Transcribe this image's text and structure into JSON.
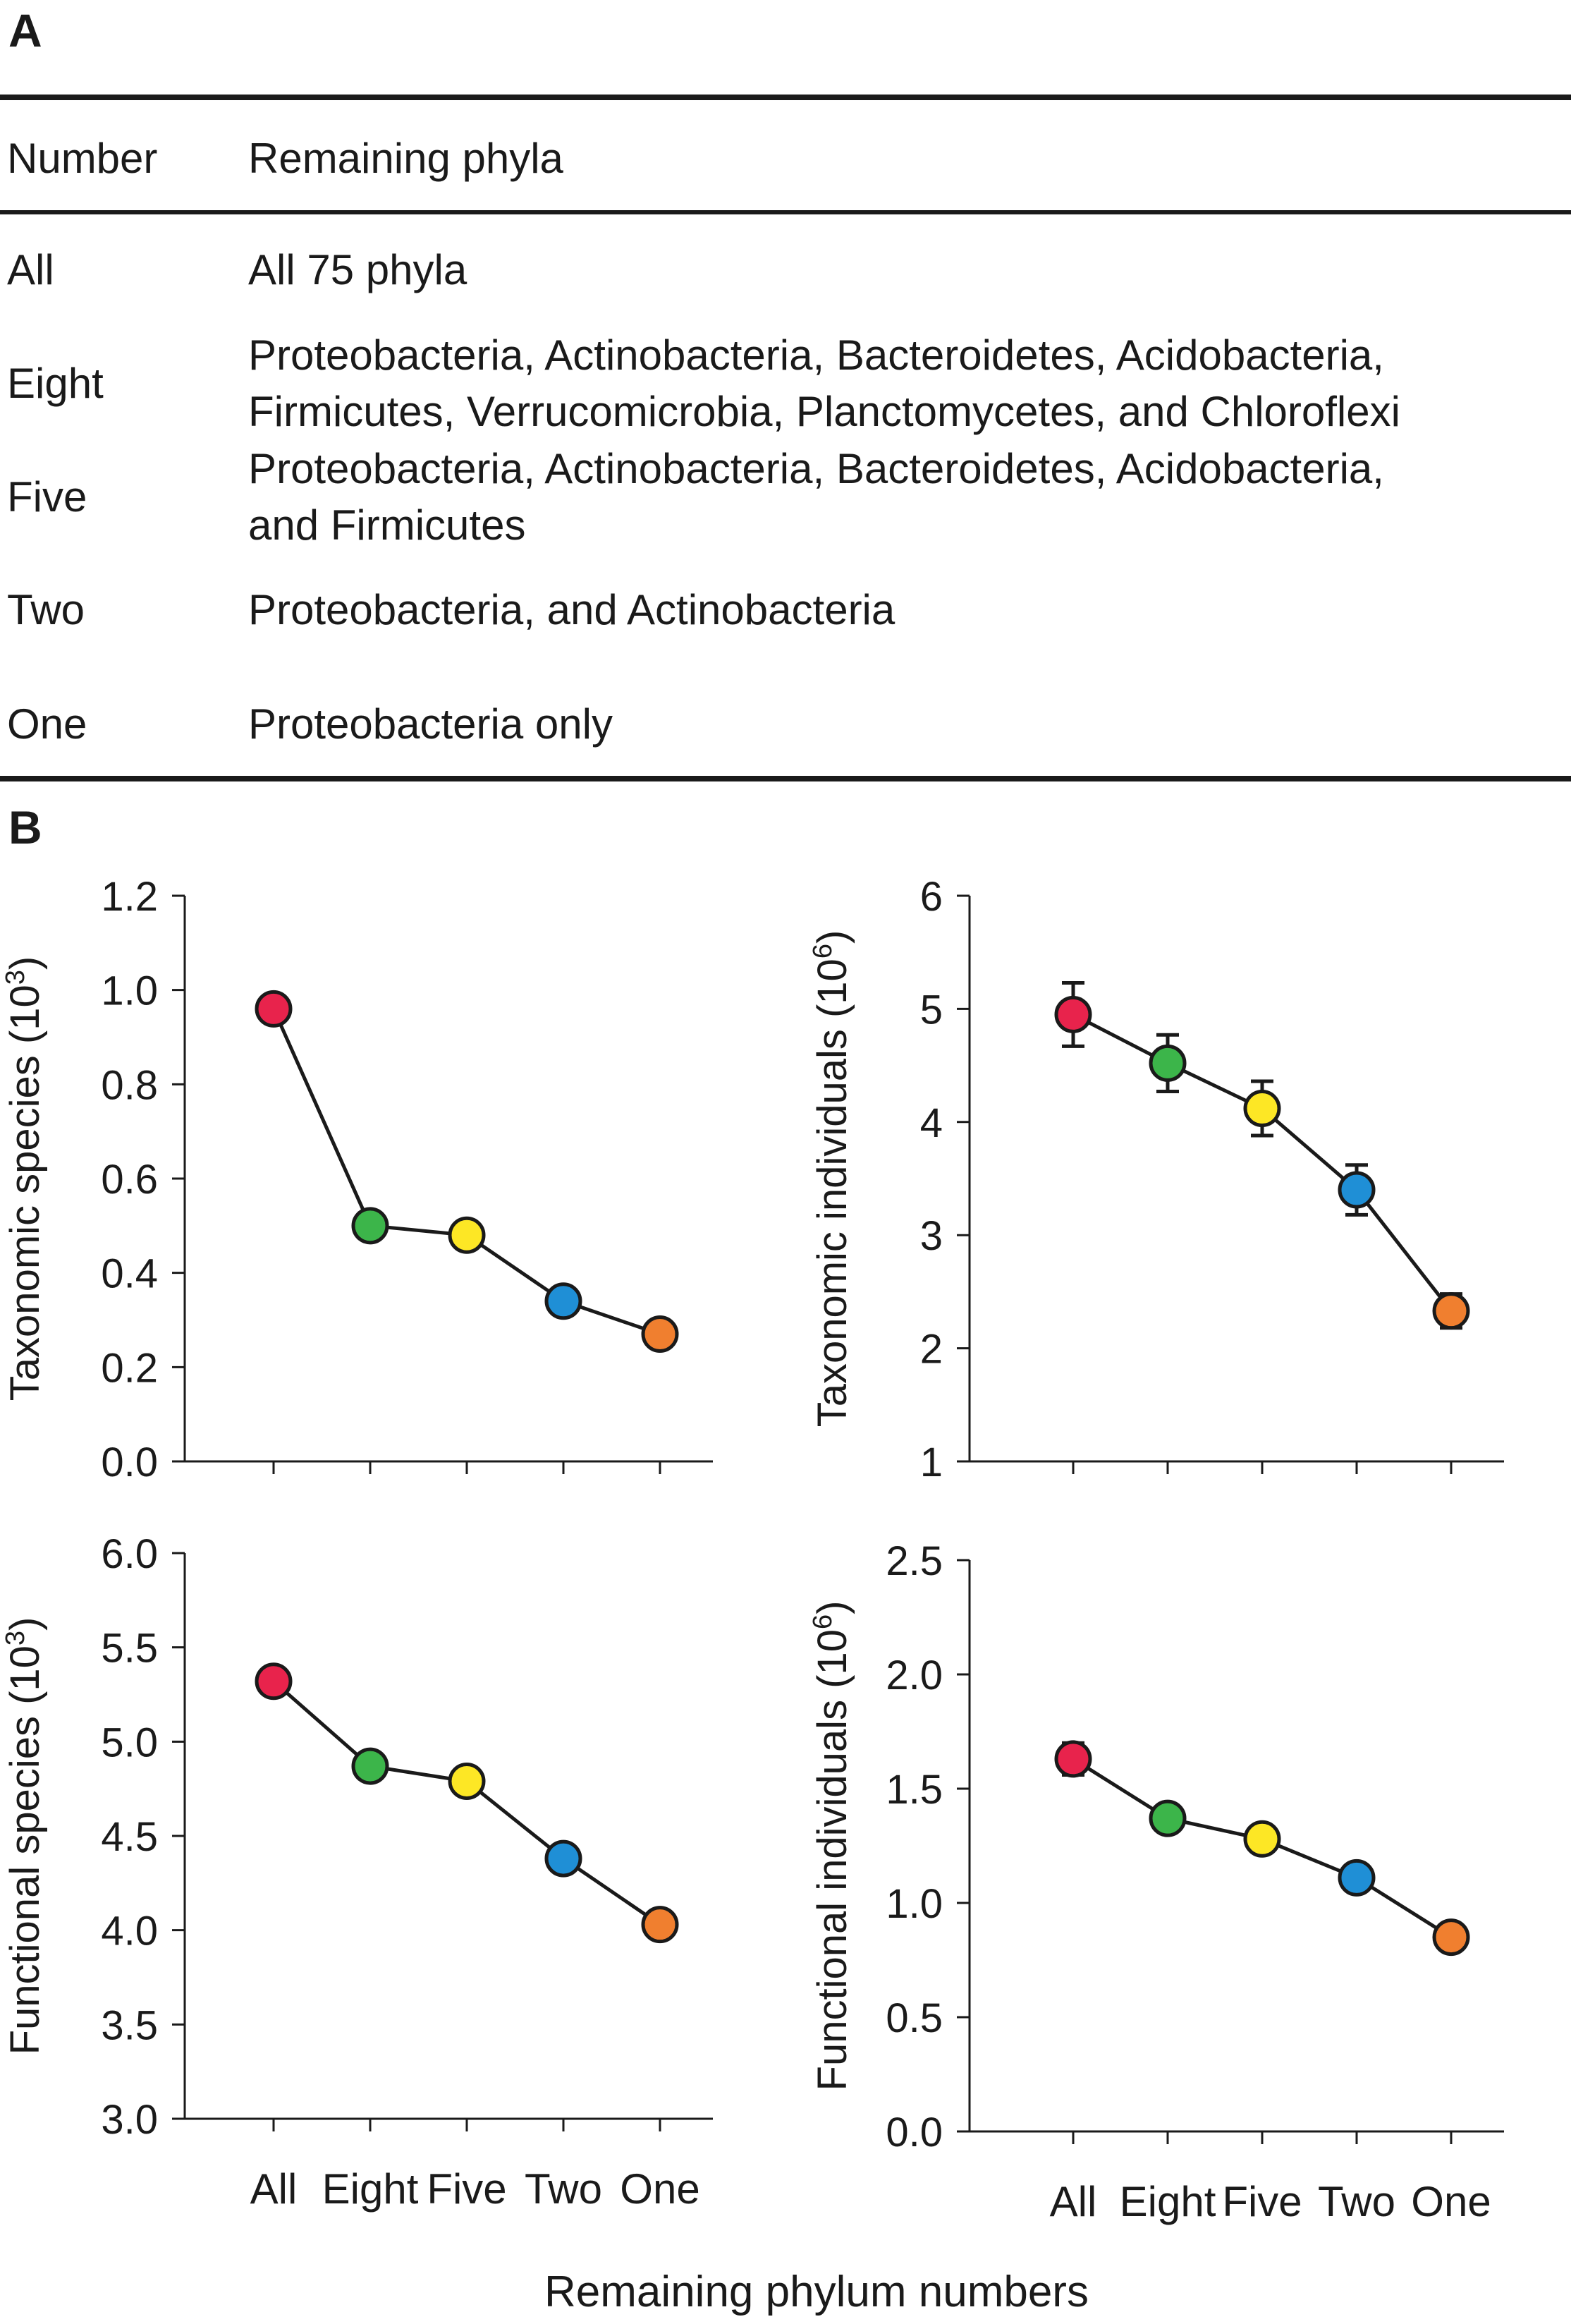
{
  "panel_a_label": "A",
  "panel_b_label": "B",
  "table": {
    "headers": [
      "Number",
      "Remaining phyla"
    ],
    "rows": [
      {
        "number": "All",
        "lines": [
          "All 75 phyla"
        ]
      },
      {
        "number": "Eight",
        "lines": [
          "Proteobacteria, Actinobacteria, Bacteroidetes, Acidobacteria,",
          "Firmicutes, Verrucomicrobia, Planctomycetes, and Chloroflexi"
        ]
      },
      {
        "number": "Five",
        "lines": [
          "Proteobacteria, Actinobacteria, Bacteroidetes, Acidobacteria,",
          "and Firmicutes"
        ]
      },
      {
        "number": "Two",
        "lines": [
          "Proteobacteria, and Actinobacteria"
        ]
      },
      {
        "number": "One",
        "lines": [
          "Proteobacteria only"
        ]
      }
    ]
  },
  "xlabel": "Remaining phylum numbers",
  "chart_data": [
    {
      "type": "line",
      "ylabel": "Taxonomic species (10",
      "ylabel_sup": "3",
      "ylabel_close": ")",
      "categories": [
        "All",
        "Eight",
        "Five",
        "Two",
        "One"
      ],
      "values": [
        0.96,
        0.5,
        0.48,
        0.34,
        0.27
      ],
      "errors": [
        0,
        0,
        0,
        0,
        0
      ],
      "ylim": [
        0.0,
        1.2
      ],
      "yticks": [
        "0.0",
        "0.2",
        "0.4",
        "0.6",
        "0.8",
        "1.0",
        "1.2"
      ],
      "show_category_labels": false
    },
    {
      "type": "line",
      "ylabel": "Taxonomic individuals (10",
      "ylabel_sup": "6",
      "ylabel_close": ")",
      "categories": [
        "All",
        "Eight",
        "Five",
        "Two",
        "One"
      ],
      "values": [
        4.95,
        4.52,
        4.12,
        3.4,
        2.33
      ],
      "errors": [
        0.28,
        0.25,
        0.24,
        0.22,
        0.15
      ],
      "ylim": [
        1,
        6
      ],
      "yticks": [
        "1",
        "2",
        "3",
        "4",
        "5",
        "6"
      ],
      "show_category_labels": false
    },
    {
      "type": "line",
      "ylabel": "Functional species (10",
      "ylabel_sup": "3",
      "ylabel_close": ")",
      "categories": [
        "All",
        "Eight",
        "Five",
        "Two",
        "One"
      ],
      "values": [
        5.32,
        4.87,
        4.79,
        4.38,
        4.03
      ],
      "errors": [
        0,
        0,
        0,
        0,
        0
      ],
      "ylim": [
        3.0,
        6.0
      ],
      "yticks": [
        "3.0",
        "3.5",
        "4.0",
        "4.5",
        "5.0",
        "5.5",
        "6.0"
      ],
      "show_category_labels": true
    },
    {
      "type": "line",
      "ylabel": "Functional individuals (10",
      "ylabel_sup": "6",
      "ylabel_close": ")",
      "categories": [
        "All",
        "Eight",
        "Five",
        "Two",
        "One"
      ],
      "values": [
        1.63,
        1.37,
        1.28,
        1.11,
        0.85
      ],
      "errors": [
        0.07,
        0.05,
        0.05,
        0.04,
        0.03
      ],
      "ylim": [
        0.0,
        2.5
      ],
      "yticks": [
        "0.0",
        "0.5",
        "1.0",
        "1.5",
        "2.0",
        "2.5"
      ],
      "show_category_labels": true
    }
  ],
  "colors": {
    "All": "#e8234c",
    "Eight": "#3cb54a",
    "Five": "#fde725",
    "Two": "#1f8fd6",
    "One": "#f07f2f",
    "ink": "#1a1a1a"
  }
}
